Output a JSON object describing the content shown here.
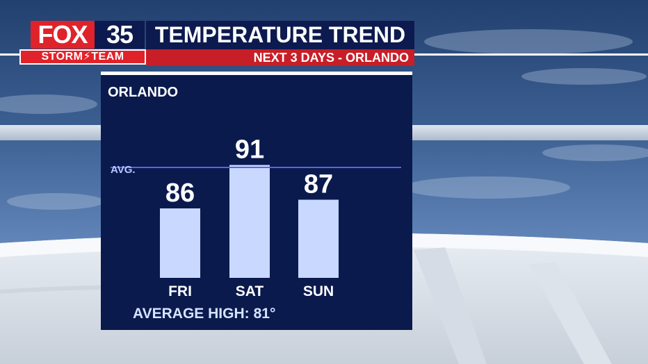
{
  "brand": {
    "logo_fox": "FOX",
    "logo_number": "35",
    "logo_team": "STORM⚡TEAM"
  },
  "header": {
    "title": "TEMPERATURE TREND",
    "subtitle": "NEXT 3 DAYS - ORLANDO"
  },
  "panel": {
    "city": "ORLANDO",
    "average_label": "AVERAGE HIGH:",
    "average_value": "81°"
  },
  "colors": {
    "panel_bg": "#0a1a4d",
    "bar_fill": "#c9d8ff",
    "avg_line": "#5a63e8",
    "brand_red": "#e0232a",
    "brand_navy": "#0c1a4f"
  },
  "chart_data": {
    "type": "bar",
    "categories": [
      "FRI",
      "SAT",
      "SUN"
    ],
    "values": [
      86,
      91,
      87
    ],
    "value_labels": [
      "86",
      "91",
      "87"
    ],
    "average": 81,
    "average_line_label": "AVG.",
    "title": "",
    "xlabel": "",
    "ylabel": "",
    "grid": false,
    "legend": "none"
  }
}
